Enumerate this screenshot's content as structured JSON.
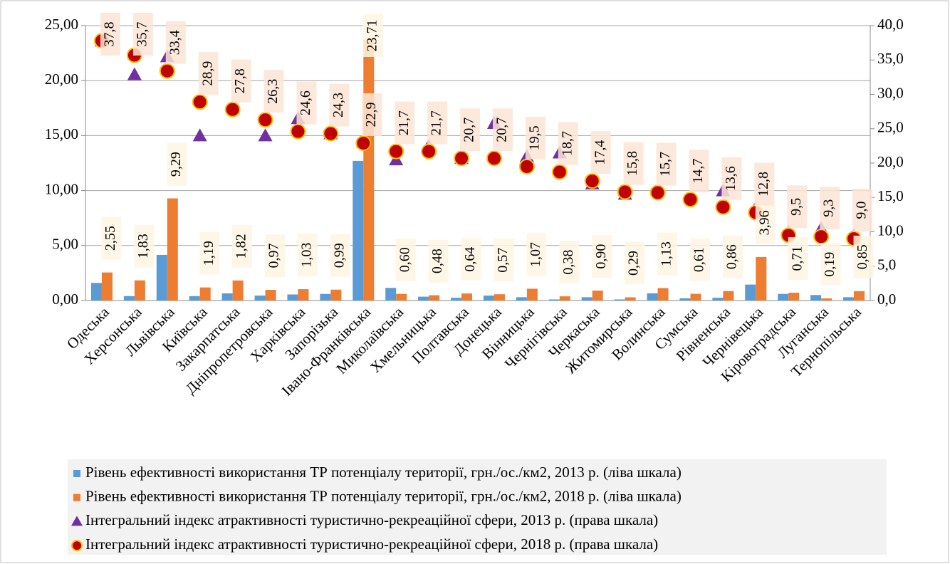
{
  "chart_data": {
    "type": "bar",
    "categories": [
      "Одеська",
      "Херсонська",
      "Львівська",
      "Київська",
      "Закарпатська",
      "Дніпропетровська",
      "Харківська",
      "Запорізька",
      "Івано-Франківська",
      "Миколаївська",
      "Хмельницька",
      "Полтавська",
      "Донецька",
      "Вінницька",
      "Чернігівська",
      "Черкаська",
      "Житомирська",
      "Волинська",
      "Сумська",
      "Рівненська",
      "Чернівецька",
      "Кіровоградська",
      "Луганська",
      "Тернопільська"
    ],
    "series": [
      {
        "name": "Рівень ефективності використання ТР потенціалу території, грн./ос./км2, 2013 р. (ліва шкала)",
        "type": "bar",
        "color": "#5b9bd5",
        "values": [
          1.6,
          0.4,
          4.15,
          0.4,
          0.65,
          0.45,
          0.55,
          0.6,
          12.7,
          1.15,
          0.35,
          0.25,
          0.45,
          0.3,
          0.1,
          0.3,
          0.1,
          0.65,
          0.2,
          0.25,
          1.45,
          0.6,
          0.5,
          0.3
        ]
      },
      {
        "name": "Рівень ефективності використання ТР потенціалу території, грн./ос./км2, 2018 р. (ліва шкала)",
        "type": "bar",
        "color": "#ed7d31",
        "values": [
          2.55,
          1.83,
          9.29,
          1.19,
          1.82,
          0.97,
          1.03,
          0.99,
          23.71,
          0.6,
          0.48,
          0.64,
          0.57,
          1.07,
          0.38,
          0.9,
          0.29,
          1.13,
          0.61,
          0.86,
          3.96,
          0.71,
          0.19,
          0.85
        ],
        "value_labels": [
          "2,55",
          "1,83",
          "9,29",
          "1,19",
          "1,82",
          "0,97",
          "1,03",
          "0,99",
          "23,71",
          "0,60",
          "0,48",
          "0,64",
          "0,57",
          "1,07",
          "0,38",
          "0,90",
          "0,29",
          "1,13",
          "0,61",
          "0,86",
          "3,96",
          "0,71",
          "0,19",
          "0,85"
        ]
      },
      {
        "name": "Інтегральний індекс  атрактивності туристично-рекреаційної сфери, 2013 р.  (права шкала)",
        "type": "scatter",
        "marker": "triangle",
        "axis": "y2",
        "color": "#7030a0",
        "values": [
          37.8,
          32.9,
          35.5,
          24,
          28,
          24,
          26.5,
          24.3,
          23,
          20.5,
          22.5,
          20.7,
          25.8,
          21,
          21.5,
          17,
          15.5,
          16,
          15,
          16,
          13.5,
          10,
          10.5,
          9.5
        ]
      },
      {
        "name": "Інтегральний індекс  атрактивності туристично-рекреаційної сфери, 2018 р. (права шкала)",
        "type": "scatter",
        "marker": "circle",
        "axis": "y2",
        "color": "#c00000",
        "edge": "#ffc000",
        "values": [
          37.8,
          35.7,
          33.4,
          28.9,
          27.8,
          26.3,
          24.6,
          24.3,
          22.9,
          21.7,
          21.7,
          20.7,
          20.7,
          19.5,
          18.7,
          17.4,
          15.8,
          15.7,
          14.7,
          13.6,
          12.8,
          9.5,
          9.3,
          9.0
        ],
        "value_labels": [
          "37,8",
          "35,7",
          "33,4",
          "28,9",
          "27,8",
          "26,3",
          "24,6",
          "24,3",
          "22,9",
          "21,7",
          "21,7",
          "20,7",
          "20,7",
          "19,5",
          "18,7",
          "17,4",
          "15,8",
          "15,7",
          "14,7",
          "13,6",
          "12,8",
          "9,5",
          "9,3",
          "9,0"
        ]
      }
    ],
    "ylim": [
      0,
      25
    ],
    "yticks": [
      {
        "value": 0,
        "label": "0,00"
      },
      {
        "value": 5,
        "label": "5,00"
      },
      {
        "value": 10,
        "label": "10,00"
      },
      {
        "value": 15,
        "label": "15,00"
      },
      {
        "value": 20,
        "label": "20,00"
      },
      {
        "value": 25,
        "label": "25,00"
      }
    ],
    "y2lim": [
      0,
      40
    ],
    "y2ticks": [
      {
        "value": 0,
        "label": "0,0"
      },
      {
        "value": 5,
        "label": "5,0"
      },
      {
        "value": 10,
        "label": "10,0"
      },
      {
        "value": 15,
        "label": "15,0"
      },
      {
        "value": 20,
        "label": "20,0"
      },
      {
        "value": 25,
        "label": "25,0"
      },
      {
        "value": 30,
        "label": "30,0"
      },
      {
        "value": 35,
        "label": "35,0"
      },
      {
        "value": 40,
        "label": "40,0"
      }
    ],
    "grid": true,
    "legend": "bottom"
  }
}
